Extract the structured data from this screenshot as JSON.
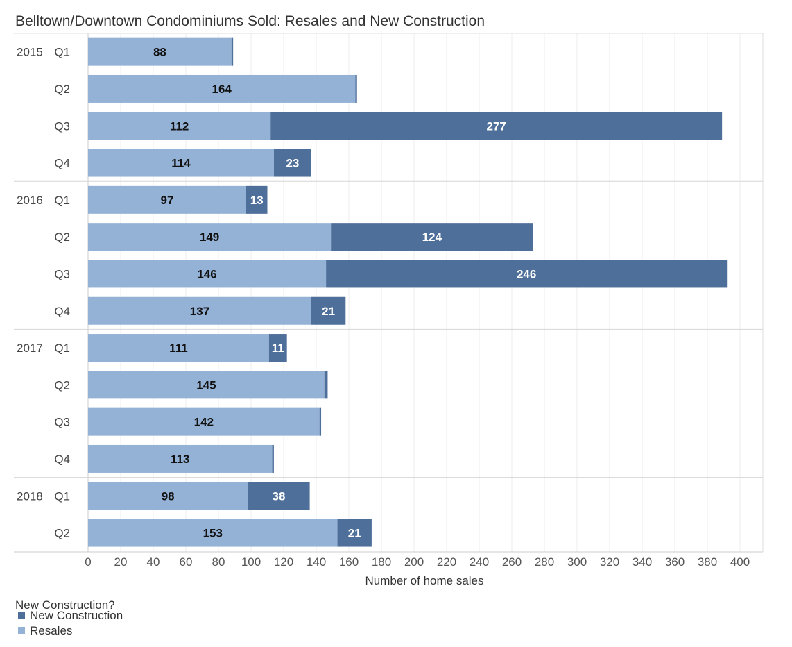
{
  "chart_data": {
    "type": "bar",
    "orientation": "horizontal",
    "stacked": true,
    "title": "Belltown/Downtown Condominiums Sold: Resales and New Construction",
    "xlabel": "Number of home sales",
    "ylabel": "",
    "xlim": [
      0,
      410
    ],
    "x_ticks": [
      0,
      20,
      40,
      60,
      80,
      100,
      120,
      140,
      160,
      180,
      200,
      220,
      240,
      260,
      280,
      300,
      320,
      340,
      360,
      380,
      400
    ],
    "grid": true,
    "legend_position": "bottom-left",
    "legend_title": "New Construction?",
    "categories": [
      {
        "year": "2015",
        "quarter": "Q1"
      },
      {
        "year": "",
        "quarter": "Q2"
      },
      {
        "year": "",
        "quarter": "Q3"
      },
      {
        "year": "",
        "quarter": "Q4"
      },
      {
        "year": "2016",
        "quarter": "Q1"
      },
      {
        "year": "",
        "quarter": "Q2"
      },
      {
        "year": "",
        "quarter": "Q3"
      },
      {
        "year": "",
        "quarter": "Q4"
      },
      {
        "year": "2017",
        "quarter": "Q1"
      },
      {
        "year": "",
        "quarter": "Q2"
      },
      {
        "year": "",
        "quarter": "Q3"
      },
      {
        "year": "",
        "quarter": "Q4"
      },
      {
        "year": "2018",
        "quarter": "Q1"
      },
      {
        "year": "",
        "quarter": "Q2"
      }
    ],
    "series": [
      {
        "name": "Resales",
        "color": "#94b2d6",
        "label_color": "#111111",
        "values": [
          88,
          164,
          112,
          114,
          97,
          149,
          146,
          137,
          111,
          145,
          142,
          113,
          98,
          153
        ],
        "labels": [
          "88",
          "164",
          "112",
          "114",
          "97",
          "149",
          "146",
          "137",
          "111",
          "145",
          "142",
          "113",
          "98",
          "153"
        ]
      },
      {
        "name": "New Construction",
        "color": "#4e6f9a",
        "label_color": "#ffffff",
        "values": [
          1,
          1,
          277,
          23,
          13,
          124,
          246,
          21,
          11,
          2,
          1,
          1,
          38,
          21
        ],
        "labels": [
          "",
          "",
          "277",
          "23",
          "13",
          "124",
          "246",
          "21",
          "11",
          "",
          "",
          "",
          "38",
          "21"
        ]
      }
    ],
    "legend_order": [
      "New Construction",
      "Resales"
    ]
  }
}
